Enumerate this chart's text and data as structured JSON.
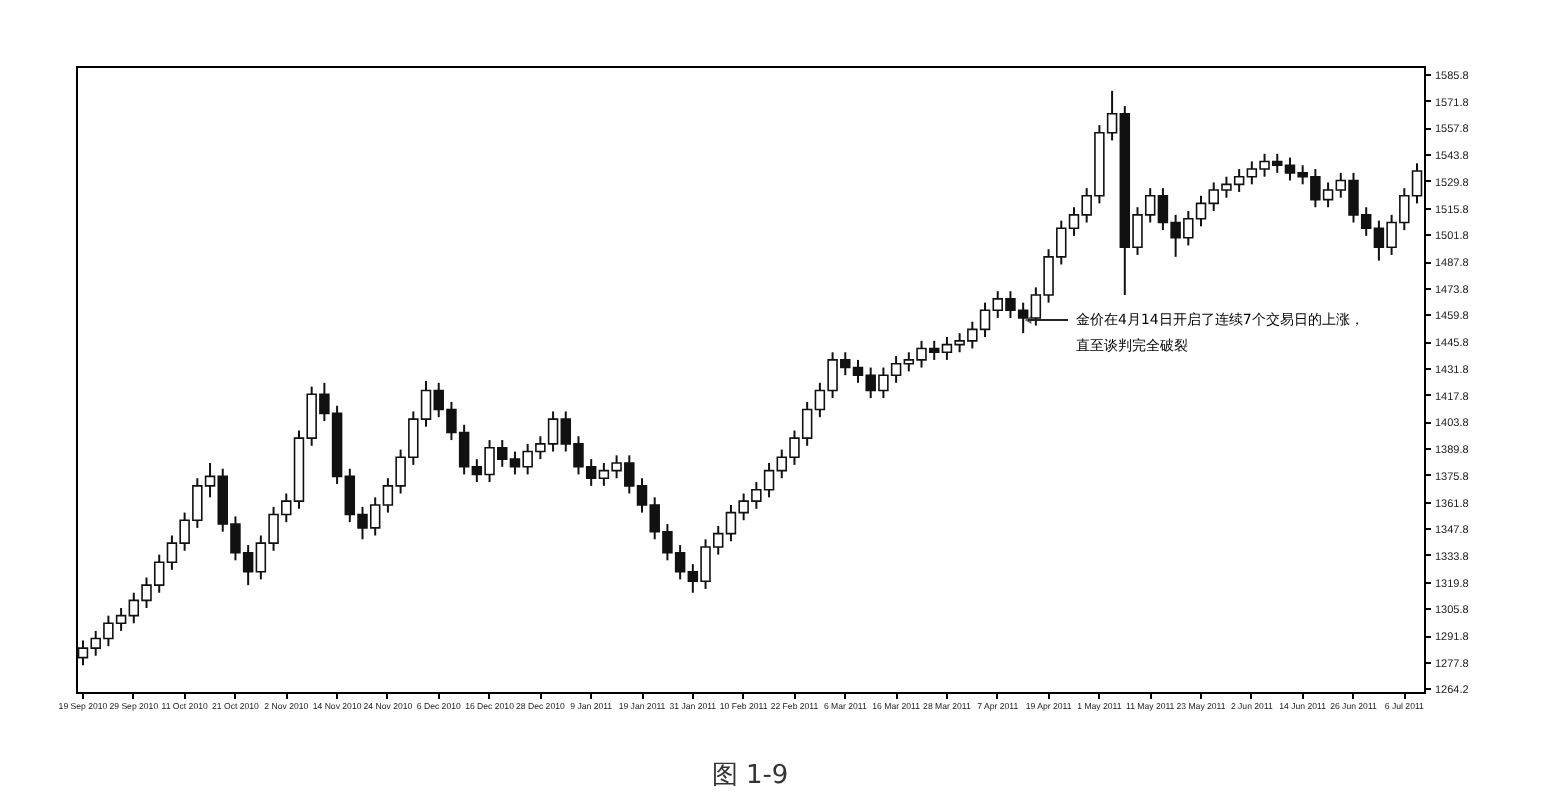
{
  "chart_data": {
    "type": "candlestick",
    "color": "#111111",
    "categories": [
      "19 Sep 2010",
      null,
      null,
      null,
      "29 Sep 2010",
      null,
      null,
      null,
      "11 Oct 2010",
      null,
      null,
      null,
      "21 Oct 2010",
      null,
      null,
      null,
      "2 Nov 2010",
      null,
      null,
      null,
      "14 Nov 2010",
      null,
      null,
      null,
      "24 Nov 2010",
      null,
      null,
      null,
      "6 Dec 2010",
      null,
      null,
      null,
      "16 Dec 2010",
      null,
      null,
      null,
      "28 Dec 2010",
      null,
      null,
      null,
      "9 Jan 2011",
      null,
      null,
      null,
      "19 Jan 2011",
      null,
      null,
      null,
      "31 Jan 2011",
      null,
      null,
      null,
      "10 Feb 2011",
      null,
      null,
      null,
      "22 Feb 2011",
      null,
      null,
      null,
      "6 Mar 2011",
      null,
      null,
      null,
      "16 Mar 2011",
      null,
      null,
      null,
      "28 Mar 2011",
      null,
      null,
      null,
      "7 Apr 2011",
      null,
      null,
      null,
      "19 Apr 2011",
      null,
      null,
      null,
      "1 May 2011",
      null,
      null,
      null,
      "11 May 2011",
      null,
      null,
      null,
      "23 May 2011",
      null,
      null,
      null,
      "2 Jun 2011",
      null,
      null,
      null,
      "14 Jun 2011",
      null,
      null,
      null,
      "26 Jun 2011",
      null,
      null,
      null,
      "6 Jul 2011",
      null
    ],
    "ohlc": [
      [
        1280,
        1289,
        1276,
        1285
      ],
      [
        1285,
        1294,
        1281,
        1290
      ],
      [
        1290,
        1302,
        1286,
        1298
      ],
      [
        1298,
        1306,
        1294,
        1302
      ],
      [
        1302,
        1314,
        1298,
        1310
      ],
      [
        1310,
        1322,
        1306,
        1318
      ],
      [
        1318,
        1334,
        1314,
        1330
      ],
      [
        1330,
        1344,
        1326,
        1340
      ],
      [
        1340,
        1356,
        1336,
        1352
      ],
      [
        1352,
        1374,
        1348,
        1370
      ],
      [
        1370,
        1382,
        1364,
        1375
      ],
      [
        1375,
        1379,
        1346,
        1350
      ],
      [
        1350,
        1354,
        1331,
        1335
      ],
      [
        1335,
        1339,
        1318,
        1325
      ],
      [
        1325,
        1344,
        1321,
        1340
      ],
      [
        1340,
        1359,
        1336,
        1355
      ],
      [
        1355,
        1366,
        1351,
        1362
      ],
      [
        1362,
        1399,
        1358,
        1395
      ],
      [
        1395,
        1422,
        1391,
        1418
      ],
      [
        1418,
        1424,
        1404,
        1408
      ],
      [
        1408,
        1412,
        1371,
        1375
      ],
      [
        1375,
        1379,
        1351,
        1355
      ],
      [
        1355,
        1359,
        1342,
        1348
      ],
      [
        1348,
        1364,
        1344,
        1360
      ],
      [
        1360,
        1374,
        1356,
        1370
      ],
      [
        1370,
        1389,
        1366,
        1385
      ],
      [
        1385,
        1409,
        1381,
        1405
      ],
      [
        1405,
        1425,
        1401,
        1420
      ],
      [
        1420,
        1424,
        1406,
        1410
      ],
      [
        1410,
        1414,
        1394,
        1398
      ],
      [
        1398,
        1402,
        1376,
        1380
      ],
      [
        1380,
        1384,
        1372,
        1376
      ],
      [
        1376,
        1394,
        1372,
        1390
      ],
      [
        1390,
        1394,
        1380,
        1384
      ],
      [
        1384,
        1388,
        1376,
        1380
      ],
      [
        1380,
        1392,
        1376,
        1388
      ],
      [
        1388,
        1396,
        1384,
        1392
      ],
      [
        1392,
        1409,
        1388,
        1405
      ],
      [
        1405,
        1409,
        1388,
        1392
      ],
      [
        1392,
        1396,
        1376,
        1380
      ],
      [
        1380,
        1384,
        1370,
        1374
      ],
      [
        1374,
        1382,
        1370,
        1378
      ],
      [
        1378,
        1386,
        1374,
        1382
      ],
      [
        1382,
        1386,
        1366,
        1370
      ],
      [
        1370,
        1374,
        1356,
        1360
      ],
      [
        1360,
        1364,
        1342,
        1346
      ],
      [
        1346,
        1350,
        1331,
        1335
      ],
      [
        1335,
        1339,
        1321,
        1325
      ],
      [
        1325,
        1329,
        1314,
        1320
      ],
      [
        1320,
        1342,
        1316,
        1338
      ],
      [
        1338,
        1349,
        1334,
        1345
      ],
      [
        1345,
        1360,
        1341,
        1356
      ],
      [
        1356,
        1366,
        1352,
        1362
      ],
      [
        1362,
        1372,
        1358,
        1368
      ],
      [
        1368,
        1382,
        1364,
        1378
      ],
      [
        1378,
        1389,
        1374,
        1385
      ],
      [
        1385,
        1399,
        1381,
        1395
      ],
      [
        1395,
        1414,
        1391,
        1410
      ],
      [
        1410,
        1424,
        1406,
        1420
      ],
      [
        1420,
        1440,
        1416,
        1436
      ],
      [
        1436,
        1440,
        1428,
        1432
      ],
      [
        1432,
        1436,
        1424,
        1428
      ],
      [
        1428,
        1432,
        1416,
        1420
      ],
      [
        1420,
        1432,
        1416,
        1428
      ],
      [
        1428,
        1438,
        1424,
        1434
      ],
      [
        1434,
        1440,
        1430,
        1436
      ],
      [
        1436,
        1446,
        1432,
        1442
      ],
      [
        1442,
        1446,
        1436,
        1440
      ],
      [
        1440,
        1448,
        1436,
        1444
      ],
      [
        1444,
        1450,
        1440,
        1446
      ],
      [
        1446,
        1456,
        1442,
        1452
      ],
      [
        1452,
        1466,
        1448,
        1462
      ],
      [
        1462,
        1472,
        1458,
        1468
      ],
      [
        1468,
        1472,
        1458,
        1462
      ],
      [
        1462,
        1466,
        1450,
        1458
      ],
      [
        1458,
        1474,
        1454,
        1470
      ],
      [
        1470,
        1494,
        1466,
        1490
      ],
      [
        1490,
        1509,
        1486,
        1505
      ],
      [
        1505,
        1516,
        1501,
        1512
      ],
      [
        1512,
        1526,
        1508,
        1522
      ],
      [
        1522,
        1559,
        1518,
        1555
      ],
      [
        1555,
        1577,
        1551,
        1565
      ],
      [
        1565,
        1569,
        1470,
        1495
      ],
      [
        1495,
        1516,
        1491,
        1512
      ],
      [
        1512,
        1526,
        1508,
        1522
      ],
      [
        1522,
        1526,
        1504,
        1508
      ],
      [
        1508,
        1512,
        1490,
        1500
      ],
      [
        1500,
        1514,
        1496,
        1510
      ],
      [
        1510,
        1522,
        1506,
        1518
      ],
      [
        1518,
        1529,
        1514,
        1525
      ],
      [
        1525,
        1532,
        1521,
        1528
      ],
      [
        1528,
        1536,
        1524,
        1532
      ],
      [
        1532,
        1540,
        1528,
        1536
      ],
      [
        1536,
        1544,
        1532,
        1540
      ],
      [
        1540,
        1544,
        1534,
        1538
      ],
      [
        1538,
        1542,
        1530,
        1534
      ],
      [
        1534,
        1538,
        1528,
        1532
      ],
      [
        1532,
        1536,
        1516,
        1520
      ],
      [
        1520,
        1529,
        1516,
        1525
      ],
      [
        1525,
        1534,
        1521,
        1530
      ],
      [
        1530,
        1534,
        1508,
        1512
      ],
      [
        1512,
        1516,
        1501,
        1505
      ],
      [
        1505,
        1509,
        1488,
        1495
      ],
      [
        1495,
        1512,
        1491,
        1508
      ],
      [
        1508,
        1526,
        1504,
        1522
      ],
      [
        1522,
        1539,
        1518,
        1535
      ]
    ],
    "ylim": [
      1262,
      1590
    ],
    "yticks": [
      1264.2,
      1277.8,
      1291.8,
      1305.8,
      1319.8,
      1333.8,
      1347.8,
      1361.8,
      1375.8,
      1389.8,
      1403.8,
      1417.8,
      1431.8,
      1445.8,
      1459.8,
      1473.8,
      1487.8,
      1501.8,
      1515.8,
      1529.8,
      1543.8,
      1557.8,
      1571.8,
      1585.8
    ],
    "annotations": [
      "金价在4月14日开启了连续7个交易日的上涨，",
      "直至谈判完全破裂",
      "图 1-9"
    ]
  }
}
